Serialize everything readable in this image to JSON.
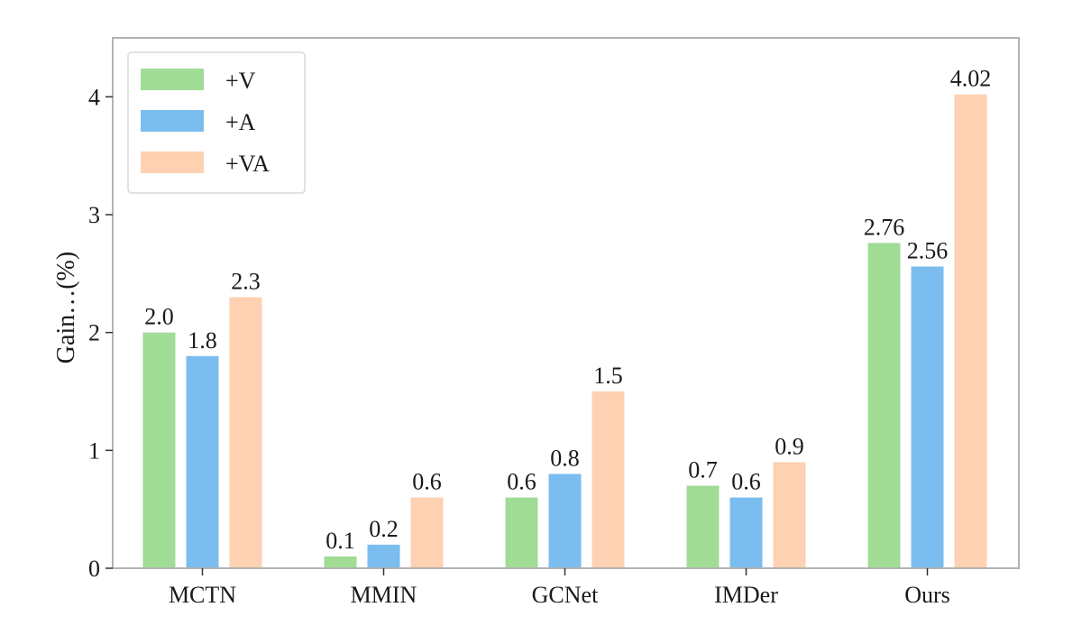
{
  "chart_data": {
    "type": "bar",
    "title": "",
    "xlabel": "",
    "ylabel": "Gain…(%)",
    "ylim": [
      0,
      4.5
    ],
    "yticks": [
      0,
      1,
      2,
      3,
      4
    ],
    "grid": false,
    "legend_position": "top-left",
    "categories": [
      "MCTN",
      "MMIN",
      "GCNet",
      "IMDer",
      "Ours"
    ],
    "series": [
      {
        "name": "+V",
        "color": "#a0dc96",
        "values": [
          2.0,
          0.1,
          0.6,
          0.7,
          2.76
        ],
        "labels": [
          "2.0",
          "0.1",
          "0.6",
          "0.7",
          "2.76"
        ]
      },
      {
        "name": "+A",
        "color": "#7abdee",
        "values": [
          1.8,
          0.2,
          0.8,
          0.6,
          2.56
        ],
        "labels": [
          "1.8",
          "0.2",
          "0.8",
          "0.6",
          "2.56"
        ]
      },
      {
        "name": "+VA",
        "color": "#fdd1b2",
        "values": [
          2.3,
          0.6,
          1.5,
          0.9,
          4.02
        ],
        "labels": [
          "2.3",
          "0.6",
          "1.5",
          "0.9",
          "4.02"
        ]
      }
    ]
  }
}
